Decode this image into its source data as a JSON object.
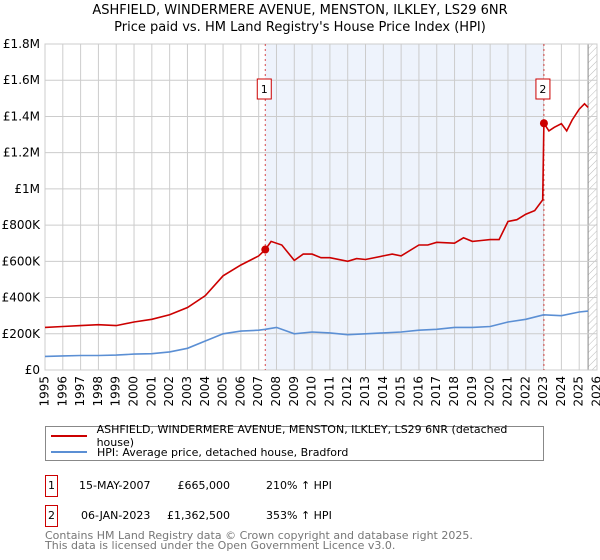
{
  "title_line1": "ASHFIELD, WINDERMERE AVENUE, MENSTON, ILKLEY, LS29 6NR",
  "title_line2": "Price paid vs. HM Land Registry's House Price Index (HPI)",
  "colors": {
    "property": "#cc0000",
    "hpi": "#5b8fd4",
    "shade": "#eef3fc",
    "grid": "#cccccc"
  },
  "chart_data": {
    "type": "line",
    "xlim": [
      1995,
      2026
    ],
    "ylim": [
      0,
      1800000
    ],
    "x_ticks": [
      "1995",
      "1996",
      "1997",
      "1998",
      "1999",
      "2000",
      "2001",
      "2002",
      "2003",
      "2004",
      "2005",
      "2006",
      "2007",
      "2008",
      "2009",
      "2010",
      "2011",
      "2012",
      "2013",
      "2014",
      "2015",
      "2016",
      "2017",
      "2018",
      "2019",
      "2020",
      "2021",
      "2022",
      "2023",
      "2024",
      "2025",
      "2026"
    ],
    "y_ticks": [
      {
        "value": 0,
        "label": "£0"
      },
      {
        "value": 200000,
        "label": "£200K"
      },
      {
        "value": 400000,
        "label": "£400K"
      },
      {
        "value": 600000,
        "label": "£600K"
      },
      {
        "value": 800000,
        "label": "£800K"
      },
      {
        "value": 1000000,
        "label": "£1M"
      },
      {
        "value": 1200000,
        "label": "£1.2M"
      },
      {
        "value": 1400000,
        "label": "£1.4M"
      },
      {
        "value": 1600000,
        "label": "£1.6M"
      },
      {
        "value": 1800000,
        "label": "£1.8M"
      }
    ],
    "grid": true,
    "shaded_range": [
      2007.37,
      2023.02
    ],
    "forecast_hatch_from": 2025.5,
    "series": [
      {
        "name": "ASHFIELD, WINDERMERE AVENUE, MENSTON, ILKLEY, LS29 6NR (detached house)",
        "x": [
          1995,
          1996,
          1997,
          1998,
          1999,
          2000,
          2001,
          2002,
          2003,
          2004,
          2005,
          2006,
          2007,
          2007.37,
          2007.7,
          2008.3,
          2009,
          2009.5,
          2010,
          2010.5,
          2011,
          2012,
          2012.5,
          2013,
          2014,
          2014.5,
          2015,
          2016,
          2016.5,
          2017,
          2018,
          2018.5,
          2019,
          2019.5,
          2020,
          2020.5,
          2021,
          2021.5,
          2022,
          2022.5,
          2022.95,
          2023.02,
          2023.3,
          2023.6,
          2024,
          2024.3,
          2024.6,
          2025,
          2025.3,
          2025.5
        ],
        "values": [
          235000,
          240000,
          245000,
          250000,
          245000,
          265000,
          280000,
          305000,
          345000,
          410000,
          520000,
          580000,
          630000,
          665000,
          710000,
          690000,
          605000,
          640000,
          640000,
          620000,
          620000,
          600000,
          615000,
          610000,
          630000,
          640000,
          630000,
          690000,
          690000,
          705000,
          700000,
          730000,
          710000,
          715000,
          720000,
          720000,
          820000,
          830000,
          860000,
          880000,
          940000,
          1362500,
          1320000,
          1340000,
          1360000,
          1320000,
          1380000,
          1440000,
          1470000,
          1450000
        ]
      },
      {
        "name": "HPI: Average price, detached house, Bradford",
        "x": [
          1995,
          1996,
          1997,
          1998,
          1999,
          2000,
          2001,
          2002,
          2003,
          2004,
          2005,
          2006,
          2007,
          2007.37,
          2008,
          2009,
          2010,
          2011,
          2012,
          2013,
          2014,
          2015,
          2016,
          2017,
          2018,
          2019,
          2020,
          2021,
          2022,
          2023,
          2024,
          2025,
          2025.5
        ],
        "values": [
          75000,
          78000,
          80000,
          80000,
          82000,
          88000,
          90000,
          100000,
          120000,
          160000,
          200000,
          215000,
          220000,
          225000,
          235000,
          200000,
          210000,
          205000,
          195000,
          200000,
          205000,
          210000,
          220000,
          225000,
          235000,
          235000,
          240000,
          265000,
          280000,
          305000,
          300000,
          320000,
          325000
        ]
      }
    ],
    "annotations": [
      {
        "label": "1",
        "x": 2007.37,
        "value": 665000
      },
      {
        "label": "2",
        "x": 2023.02,
        "value": 1362500
      }
    ]
  },
  "legend": {
    "property": "ASHFIELD, WINDERMERE AVENUE, MENSTON, ILKLEY, LS29 6NR (detached house)",
    "hpi": "HPI: Average price, detached house, Bradford"
  },
  "transactions": [
    {
      "num": "1",
      "date": "15-MAY-2007",
      "price": "£665,000",
      "hpi": "210% ↑ HPI"
    },
    {
      "num": "2",
      "date": "06-JAN-2023",
      "price": "£1,362,500",
      "hpi": "353% ↑ HPI"
    }
  ],
  "footer": {
    "line1": "Contains HM Land Registry data © Crown copyright and database right 2025.",
    "line2": "This data is licensed under the Open Government Licence v3.0."
  }
}
